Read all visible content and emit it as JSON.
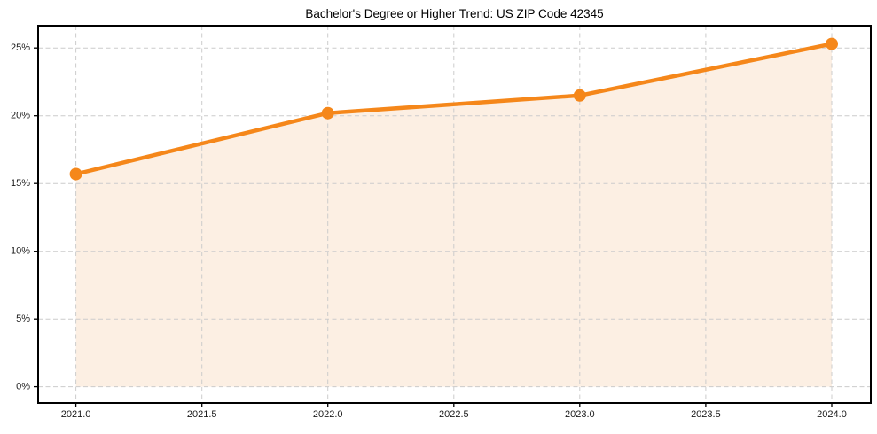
{
  "figure": {
    "background": "#ffffff"
  },
  "chart_data": {
    "type": "line",
    "title": "Bachelor's Degree or Higher Trend: US ZIP Code 42345",
    "x": [
      2021.0,
      2022.0,
      2023.0,
      2024.0
    ],
    "values": [
      15.7,
      20.2,
      21.5,
      25.3
    ],
    "xlabel": "",
    "ylabel": "",
    "xlim": [
      2020.85,
      2024.155
    ],
    "ylim": [
      -1.2,
      26.65
    ],
    "xticks": {
      "values": [
        2021.0,
        2021.5,
        2022.0,
        2022.5,
        2023.0,
        2023.5,
        2024.0
      ],
      "labels": [
        "2021.0",
        "2021.5",
        "2022.0",
        "2022.5",
        "2023.0",
        "2023.5",
        "2024.0"
      ]
    },
    "yticks": {
      "values": [
        0,
        5,
        10,
        15,
        20,
        25
      ],
      "labels": [
        "0%",
        "5%",
        "10%",
        "15%",
        "20%",
        "25%"
      ]
    },
    "grid": true,
    "legend": "none",
    "area_fill": true,
    "area_baseline": 0,
    "style": {
      "line_color": "#f5871a",
      "marker_color": "#f5871a",
      "fill_color": "#fcefe3",
      "grid_color": "#cccccc",
      "spine_color": "#000000",
      "tick_color": "#000000",
      "tick_label_color": "#1a1a1a",
      "title_color": "#000000"
    }
  }
}
